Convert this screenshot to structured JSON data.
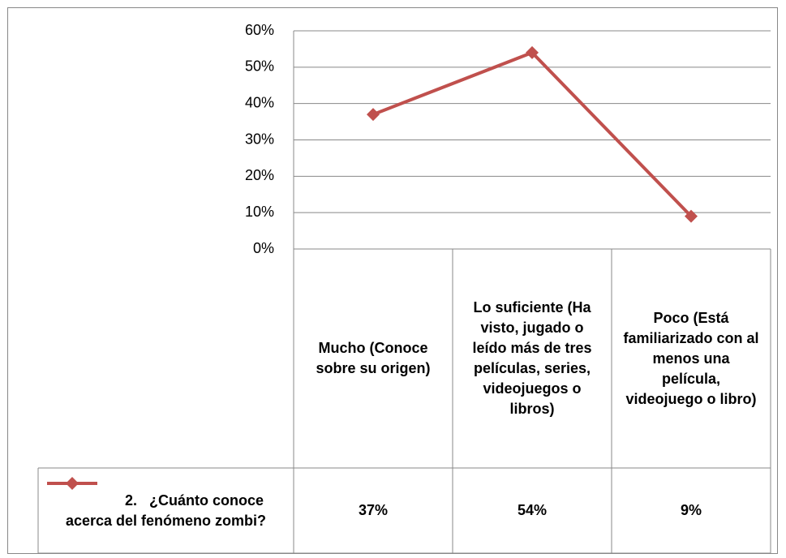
{
  "chart_data": {
    "type": "line",
    "categories": [
      "Mucho (Conoce sobre su origen)",
      "Lo suficiente (Ha visto, jugado o leído más de tres películas, series, videojuegos o libros)",
      "Poco (Está familiarizado con al menos una película, videojuego o libro)"
    ],
    "series": [
      {
        "name": "2.   ¿Cuánto conoce acerca del fenómeno zombi?",
        "color": "#c0504d",
        "values": [
          37,
          54,
          9
        ],
        "value_labels": [
          "37%",
          "54%",
          "9%"
        ]
      }
    ],
    "ylim": [
      0,
      60
    ],
    "yticks": [
      {
        "value": 0,
        "label": "0%"
      },
      {
        "value": 10,
        "label": "10%"
      },
      {
        "value": 20,
        "label": "20%"
      },
      {
        "value": 30,
        "label": "30%"
      },
      {
        "value": 40,
        "label": "40%"
      },
      {
        "value": 50,
        "label": "50%"
      },
      {
        "value": 60,
        "label": "60%"
      }
    ],
    "grid": true
  }
}
